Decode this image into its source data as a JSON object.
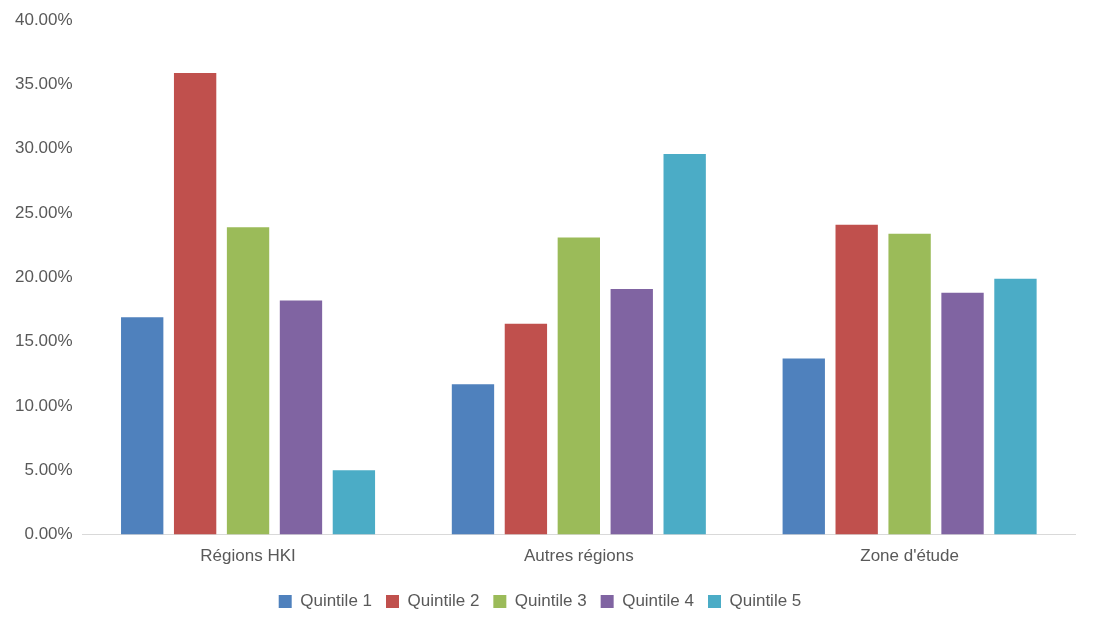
{
  "chart_data": {
    "type": "bar",
    "categories": [
      "Régions HKI",
      "Autres régions",
      "Zone d'étude"
    ],
    "series": [
      {
        "name": "Quintile 1",
        "color": "#4f81bd",
        "values": [
          16.9,
          11.7,
          13.7
        ]
      },
      {
        "name": "Quintile 2",
        "color": "#c0504d",
        "values": [
          35.9,
          16.4,
          24.1
        ]
      },
      {
        "name": "Quintile 3",
        "color": "#9bbb59",
        "values": [
          23.9,
          23.1,
          23.4
        ]
      },
      {
        "name": "Quintile 4",
        "color": "#8064a2",
        "values": [
          18.2,
          19.1,
          18.8
        ]
      },
      {
        "name": "Quintile 5",
        "color": "#4bacc6",
        "values": [
          5.0,
          29.6,
          19.9
        ]
      }
    ],
    "ylim": [
      0,
      40
    ],
    "yticks": [
      {
        "value": 0,
        "label": "0.00%"
      },
      {
        "value": 5,
        "label": "5.00%"
      },
      {
        "value": 10,
        "label": "10.00%"
      },
      {
        "value": 15,
        "label": "15.00%"
      },
      {
        "value": 20,
        "label": "20.00%"
      },
      {
        "value": 25,
        "label": "25.00%"
      },
      {
        "value": 30,
        "label": "30.00%"
      },
      {
        "value": 35,
        "label": "35.00%"
      },
      {
        "value": 40,
        "label": "40.00%"
      }
    ],
    "grid": false,
    "legend": "bottom"
  }
}
